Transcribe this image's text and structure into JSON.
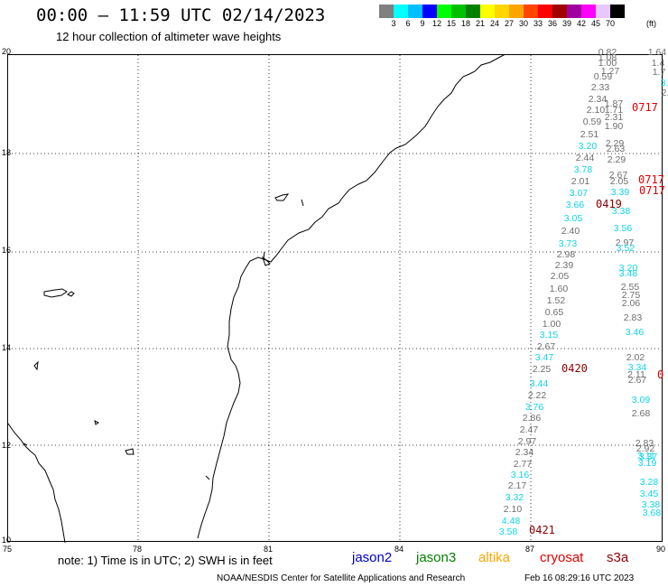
{
  "header": {
    "title": "00:00 — 11:59 UTC 02/14/2023",
    "subtitle": "12 hour collection of altimeter wave heights"
  },
  "colorbar": {
    "unit_label": "(ft)",
    "levels": [
      "3",
      "6",
      "9",
      "12",
      "15",
      "18",
      "21",
      "24",
      "27",
      "30",
      "33",
      "36",
      "39",
      "42",
      "45",
      "70"
    ],
    "colors": [
      "#808080",
      "#00ffff",
      "#00bfff",
      "#0000ff",
      "#00ff00",
      "#00c000",
      "#008000",
      "#ffff00",
      "#ffd700",
      "#ffa500",
      "#ff4500",
      "#ff0000",
      "#a00000",
      "#a000a0",
      "#ff00ff",
      "#e6c8ff",
      "#000000"
    ]
  },
  "map": {
    "lat_ticks": [
      "20",
      "18",
      "16",
      "14",
      "12",
      "10"
    ],
    "lon_ticks": [
      "75",
      "78",
      "81",
      "84",
      "87",
      "90"
    ],
    "observations": [
      {
        "text": "0.82",
        "color": "gray"
      },
      {
        "text": "1.64",
        "color": "gray"
      },
      {
        "text": "1.08",
        "color": "gray"
      },
      {
        "text": "1.4",
        "color": "gray"
      },
      {
        "text": "1.00",
        "color": "gray"
      },
      {
        "text": "1.7",
        "color": "gray"
      },
      {
        "text": "1.27",
        "color": "gray"
      },
      {
        "text": "0.59",
        "color": "gray"
      },
      {
        "text": "3.",
        "color": "cyan"
      },
      {
        "text": "2.33",
        "color": "gray"
      },
      {
        "text": "2.",
        "color": "gray"
      },
      {
        "text": "2.34",
        "color": "gray"
      },
      {
        "text": "1.87",
        "color": "gray"
      },
      {
        "text": "2.10",
        "color": "gray"
      },
      {
        "text": "1.71",
        "color": "gray"
      },
      {
        "text": "2.31",
        "color": "gray"
      },
      {
        "text": "0.59",
        "color": "gray"
      },
      {
        "text": "1.90",
        "color": "gray"
      },
      {
        "text": "2.51",
        "color": "gray"
      },
      {
        "text": "2.29",
        "color": "gray"
      },
      {
        "text": "3.20",
        "color": "cyan"
      },
      {
        "text": "2.63",
        "color": "gray"
      },
      {
        "text": "2.44",
        "color": "gray"
      },
      {
        "text": "2.29",
        "color": "gray"
      },
      {
        "text": "3.78",
        "color": "cyan"
      },
      {
        "text": "2.67",
        "color": "gray"
      },
      {
        "text": "2.01",
        "color": "gray"
      },
      {
        "text": "2.05",
        "color": "gray"
      },
      {
        "text": "3.07",
        "color": "cyan"
      },
      {
        "text": "3.39",
        "color": "cyan"
      },
      {
        "text": "3.66",
        "color": "cyan"
      },
      {
        "text": "3.38",
        "color": "cyan"
      },
      {
        "text": "3.05",
        "color": "cyan"
      },
      {
        "text": "3.56",
        "color": "cyan"
      },
      {
        "text": "2.40",
        "color": "gray"
      },
      {
        "text": "2.97",
        "color": "gray"
      },
      {
        "text": "3.73",
        "color": "cyan"
      },
      {
        "text": "3.52",
        "color": "cyan"
      },
      {
        "text": "2.98",
        "color": "gray"
      },
      {
        "text": "2.39",
        "color": "gray"
      },
      {
        "text": "3.20",
        "color": "cyan"
      },
      {
        "text": "3.48",
        "color": "cyan"
      },
      {
        "text": "2.05",
        "color": "gray"
      },
      {
        "text": "1.60",
        "color": "gray"
      },
      {
        "text": "2.55",
        "color": "gray"
      },
      {
        "text": "2.75",
        "color": "gray"
      },
      {
        "text": "1.52",
        "color": "gray"
      },
      {
        "text": "2.06",
        "color": "gray"
      },
      {
        "text": "0.65",
        "color": "gray"
      },
      {
        "text": "2.83",
        "color": "gray"
      },
      {
        "text": "1.00",
        "color": "gray"
      },
      {
        "text": "3.15",
        "color": "cyan"
      },
      {
        "text": "3.46",
        "color": "cyan"
      },
      {
        "text": "2.67",
        "color": "gray"
      },
      {
        "text": "3.47",
        "color": "cyan"
      },
      {
        "text": "2.02",
        "color": "gray"
      },
      {
        "text": "2.25",
        "color": "gray"
      },
      {
        "text": "3.34",
        "color": "cyan"
      },
      {
        "text": "3.44",
        "color": "cyan"
      },
      {
        "text": "2.11",
        "color": "gray"
      },
      {
        "text": "2.67",
        "color": "gray"
      },
      {
        "text": "2.22",
        "color": "gray"
      },
      {
        "text": "3.76",
        "color": "cyan"
      },
      {
        "text": "3.09",
        "color": "cyan"
      },
      {
        "text": "2.86",
        "color": "gray"
      },
      {
        "text": "2.68",
        "color": "gray"
      },
      {
        "text": "2.47",
        "color": "gray"
      },
      {
        "text": "2.97",
        "color": "gray"
      },
      {
        "text": "2.83",
        "color": "gray"
      },
      {
        "text": "2.34",
        "color": "gray"
      },
      {
        "text": "2.92",
        "color": "gray"
      },
      {
        "text": "3.11",
        "color": "cyan"
      },
      {
        "text": "2.77",
        "color": "gray"
      },
      {
        "text": "3.19",
        "color": "cyan"
      },
      {
        "text": "3.16",
        "color": "cyan"
      },
      {
        "text": "3.37",
        "color": "cyan"
      },
      {
        "text": "2.17",
        "color": "gray"
      },
      {
        "text": "3.28",
        "color": "cyan"
      },
      {
        "text": "3.32",
        "color": "cyan"
      },
      {
        "text": "3.45",
        "color": "cyan"
      },
      {
        "text": "2.10",
        "color": "gray"
      },
      {
        "text": "3.38",
        "color": "cyan"
      },
      {
        "text": "4.48",
        "color": "cyan"
      },
      {
        "text": "3.68",
        "color": "cyan"
      },
      {
        "text": "3.58",
        "color": "cyan"
      }
    ],
    "time_labels": [
      {
        "text": "0717",
        "color": "red"
      },
      {
        "text": "0717",
        "color": "red"
      },
      {
        "text": "0717",
        "color": "red"
      },
      {
        "text": "0419",
        "color": "darkred"
      },
      {
        "text": "0420",
        "color": "darkred"
      },
      {
        "text": "0",
        "color": "red"
      },
      {
        "text": "0421",
        "color": "darkred"
      }
    ]
  },
  "footer": {
    "note": "note: 1) Time is in UTC; 2) SWH is in feet",
    "satellites": [
      {
        "name": "jason2",
        "color": "#0000d0"
      },
      {
        "name": "jason3",
        "color": "#008000"
      },
      {
        "name": "altika",
        "color": "#ffa500"
      },
      {
        "name": "cryosat",
        "color": "#e00000"
      },
      {
        "name": "s3a",
        "color": "#900000"
      }
    ],
    "credit": "NOAA/NESDIS Center for Satellite Applications and Research",
    "timestamp": "Feb 16 08:29:16 UTC 2023"
  }
}
